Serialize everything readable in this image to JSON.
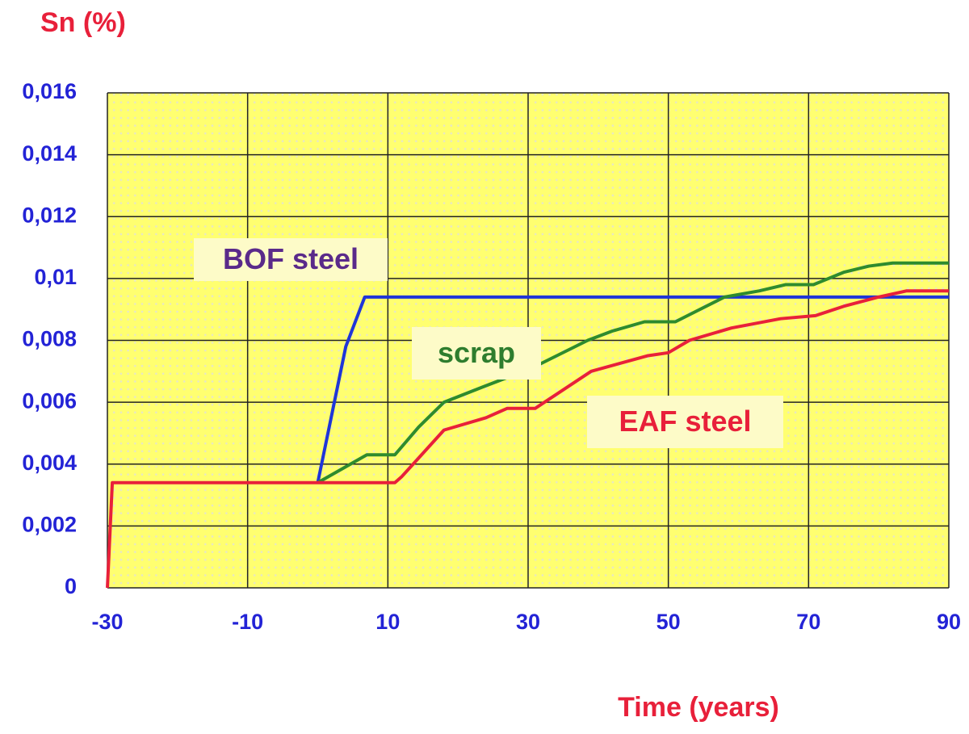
{
  "chart_data": {
    "type": "line",
    "y_label": "Sn (%)",
    "x_label": "Time (years)",
    "xlim": [
      -30,
      90
    ],
    "xticks": [
      -30,
      -10,
      10,
      30,
      50,
      70,
      90
    ],
    "ylim": [
      0,
      0.016
    ],
    "yticks": [
      0,
      {
        "value": 0.002,
        "label": "0,002"
      },
      {
        "value": 0.004,
        "label": "0,004"
      },
      {
        "value": 0.006,
        "label": "0,006"
      },
      {
        "value": 0.008,
        "label": "0,008"
      },
      {
        "value": 0.01,
        "label": "0,01"
      },
      {
        "value": 0.012,
        "label": "0,012"
      },
      {
        "value": 0.014,
        "label": "0,014"
      },
      {
        "value": 0.016,
        "label": "0,016"
      }
    ],
    "grid": true,
    "series": [
      {
        "name": "BOF steel",
        "color": "#1f35d8",
        "x": [
          0,
          4,
          6.7,
          90
        ],
        "values": [
          0.0034,
          0.0078,
          0.0094,
          0.0094
        ]
      },
      {
        "name": "scrap",
        "color": "#2e8b2e",
        "x": [
          0,
          7,
          11,
          14.4,
          18,
          23.6,
          30.5,
          38.5,
          42,
          46.6,
          51,
          58,
          63,
          66.7,
          70.7,
          75,
          78.6,
          82,
          90
        ],
        "values": [
          0.0034,
          0.0043,
          0.0043,
          0.0052,
          0.006,
          0.0065,
          0.0071,
          0.008,
          0.0083,
          0.0086,
          0.0086,
          0.0094,
          0.0096,
          0.0098,
          0.0098,
          0.0102,
          0.0104,
          0.0105,
          0.0105
        ]
      },
      {
        "name": "EAF steel",
        "color": "#e8203a",
        "x": [
          -30,
          -29.3,
          11,
          12,
          18,
          24,
          27,
          31,
          39,
          47,
          50,
          53,
          59,
          66,
          71,
          75,
          80,
          84,
          90
        ],
        "values": [
          0,
          0.0034,
          0.0034,
          0.0036,
          0.0051,
          0.0055,
          0.0058,
          0.0058,
          0.007,
          0.0075,
          0.0076,
          0.008,
          0.0084,
          0.0087,
          0.0088,
          0.0091,
          0.0094,
          0.0096,
          0.0096
        ]
      }
    ],
    "axis_label_color": "#e8203a",
    "annotation_colors": [
      "#5a2a8a",
      "#2e7d2e",
      "#e8203a"
    ]
  }
}
